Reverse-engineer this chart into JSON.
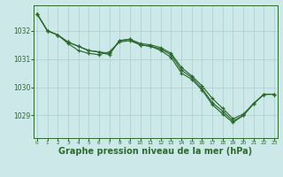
{
  "bg_color": "#cce8e8",
  "line_color": "#2d6a2d",
  "grid_color": "#aacfcf",
  "xlabel": "Graphe pression niveau de la mer (hPa)",
  "xlabel_fontsize": 7,
  "xticks": [
    0,
    1,
    2,
    3,
    4,
    5,
    6,
    7,
    8,
    9,
    10,
    11,
    12,
    13,
    14,
    15,
    16,
    17,
    18,
    19,
    20,
    21,
    22,
    23
  ],
  "yticks": [
    1029,
    1030,
    1031,
    1032
  ],
  "ylim": [
    1028.2,
    1032.9
  ],
  "xlim": [
    -0.3,
    23.3
  ],
  "line1": [
    1032.6,
    1032.0,
    1031.85,
    1031.6,
    1031.45,
    1031.3,
    1031.25,
    1031.15,
    1031.65,
    1031.7,
    1031.5,
    1031.45,
    1031.35,
    1031.15,
    1030.6,
    1030.35,
    1029.95,
    1029.45,
    1029.15,
    1028.8,
    1029.0,
    1029.42,
    1029.75,
    1029.75
  ],
  "line2": [
    1032.6,
    1032.0,
    1031.85,
    1031.6,
    1031.45,
    1031.3,
    1031.25,
    1031.2,
    1031.65,
    1031.7,
    1031.55,
    1031.5,
    1031.4,
    1031.2,
    1030.7,
    1030.4,
    1030.05,
    1029.6,
    1029.25,
    1028.88,
    1029.05,
    1029.42,
    1029.75,
    1029.75
  ],
  "line3": [
    1032.6,
    1032.0,
    1031.85,
    1031.55,
    1031.3,
    1031.2,
    1031.15,
    1031.25,
    1031.6,
    1031.65,
    1031.5,
    1031.45,
    1031.3,
    1031.05,
    1030.5,
    1030.28,
    1029.9,
    1029.38,
    1029.05,
    1028.75,
    1029.0,
    1029.42,
    1029.75,
    1029.75
  ]
}
